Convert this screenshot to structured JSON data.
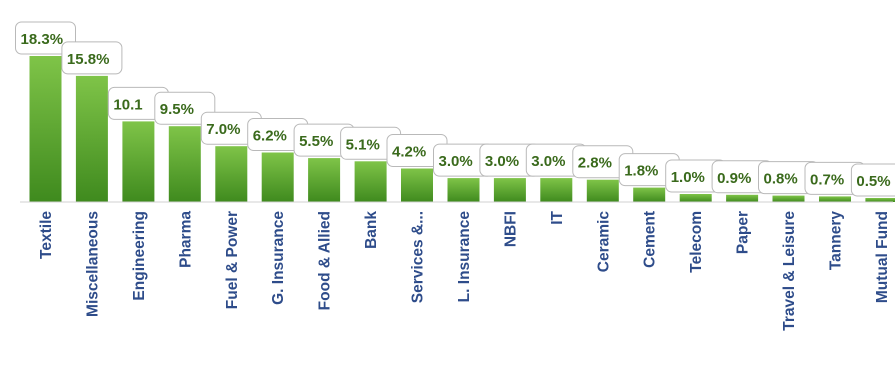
{
  "chart_data": {
    "type": "bar",
    "categories": [
      "Textile",
      "Miscellaneous",
      "Engineering",
      "Pharma",
      "Fuel & Power",
      "G. Insurance",
      "Food & Allied",
      "Bank",
      "Services &...",
      "L. Insurance",
      "NBFI",
      "IT",
      "Ceramic",
      "Cement",
      "Telecom",
      "Paper",
      "Travel & Leisure",
      "Tannery",
      "Mutual Fund"
    ],
    "values": [
      18.3,
      15.8,
      10.1,
      9.5,
      7.0,
      6.2,
      5.5,
      5.1,
      4.2,
      3.0,
      3.0,
      3.0,
      2.8,
      1.8,
      1.0,
      0.9,
      0.8,
      0.7,
      0.5
    ],
    "data_labels": [
      "18.3%",
      "15.8%",
      "10.1",
      "9.5%",
      "7.0%",
      "6.2%",
      "5.5%",
      "5.1%",
      "4.2%",
      "3.0%",
      "3.0%",
      "3.0%",
      "2.8%",
      "1.8%",
      "1.0%",
      "0.9%",
      "0.8%",
      "0.7%",
      "0.5%"
    ],
    "title": "",
    "xlabel": "",
    "ylabel": "",
    "ylim": [
      0,
      18.3
    ],
    "grid": false,
    "legend": "none",
    "bar_color": "#5aa02c"
  }
}
